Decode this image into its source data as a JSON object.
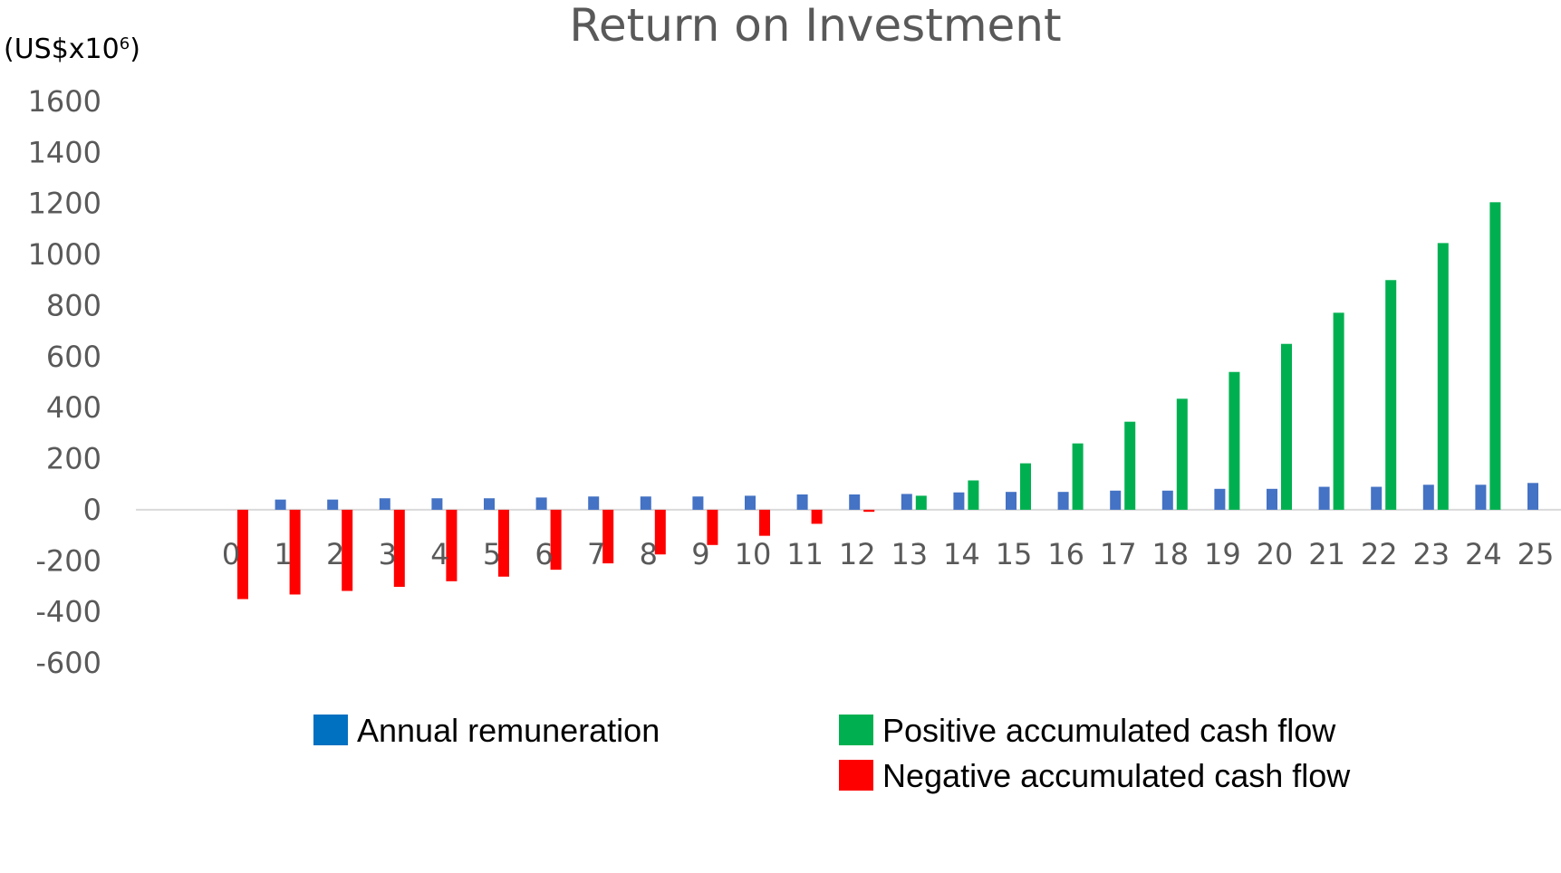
{
  "chart_data": {
    "type": "bar",
    "title": "Return on Investment",
    "ylabel": "(US$x10",
    "ylabel_sup": "6",
    "ylabel_close": ")",
    "ylim": [
      -600,
      1600
    ],
    "yticks": [
      "1600",
      "1400",
      "1200",
      "1000",
      "800",
      "600",
      "400",
      "200",
      "0",
      "-200",
      "-400",
      "-600"
    ],
    "ytick_values": [
      1600,
      1400,
      1200,
      1000,
      800,
      600,
      400,
      200,
      0,
      -200,
      -400,
      -600
    ],
    "categories": [
      "0",
      "1",
      "2",
      "3",
      "4",
      "5",
      "6",
      "7",
      "8",
      "9",
      "10",
      "11",
      "12",
      "13",
      "14",
      "15",
      "16",
      "17",
      "18",
      "19",
      "20",
      "21",
      "22",
      "23",
      "24",
      "25"
    ],
    "series": [
      {
        "name": "Annual remuneration",
        "color": "#4472c4",
        "values": [
          0,
          40,
          40,
          45,
          45,
          45,
          48,
          52,
          52,
          52,
          55,
          60,
          60,
          62,
          68,
          70,
          70,
          75,
          75,
          82,
          82,
          90,
          90,
          98,
          98,
          105
        ]
      },
      {
        "name": "Positive accumulated cash flow",
        "color": "#00b050",
        "values": [
          0,
          0,
          0,
          0,
          0,
          0,
          0,
          0,
          0,
          0,
          0,
          0,
          0,
          55,
          115,
          182,
          260,
          345,
          435,
          540,
          650,
          772,
          900,
          1045,
          1205,
          0
        ]
      },
      {
        "name": "Negative accumulated cash flow",
        "color": "#ff0000",
        "values": [
          -350,
          -332,
          -318,
          -302,
          -280,
          -262,
          -235,
          -210,
          -175,
          -138,
          -102,
          -55,
          -8,
          0,
          0,
          0,
          0,
          0,
          0,
          0,
          0,
          0,
          0,
          0,
          0,
          0
        ]
      }
    ],
    "legend": [
      {
        "label": "Annual remuneration",
        "color": "#0070c0"
      },
      {
        "label": "Positive accumulated cash flow",
        "color": "#00b050"
      },
      {
        "label": "Negative accumulated cash flow",
        "color": "#ff0000"
      }
    ],
    "legend_position": "bottom",
    "grid": false
  }
}
